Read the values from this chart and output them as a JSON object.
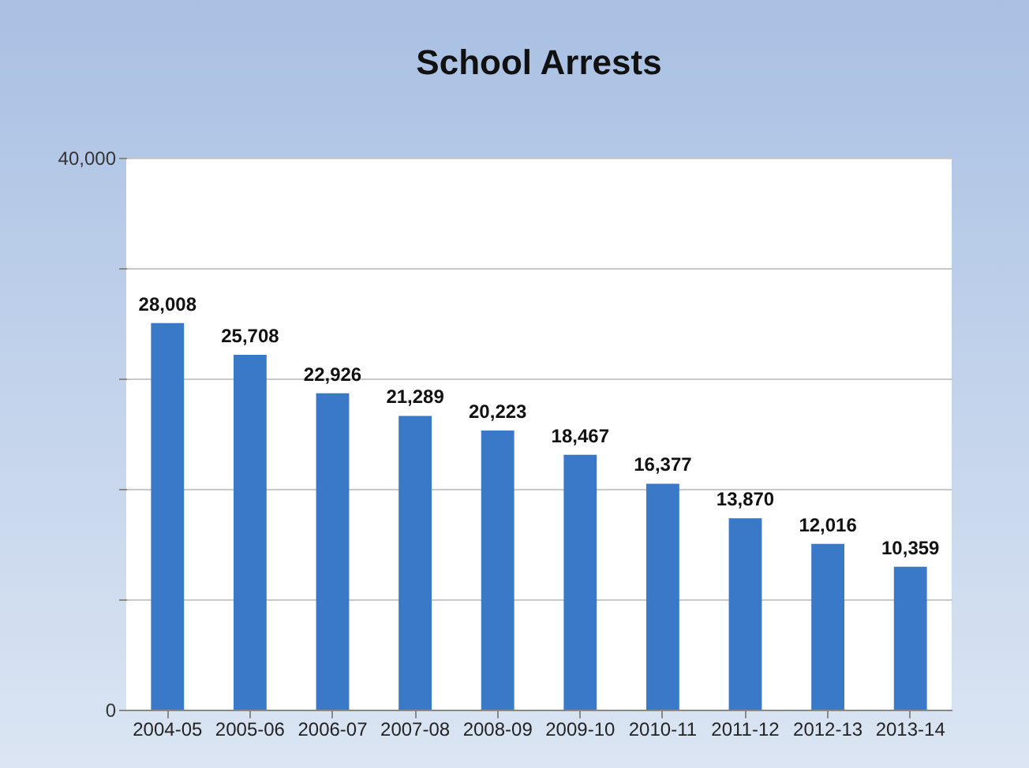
{
  "chart_data": {
    "type": "bar",
    "title": "School Arrests",
    "categories": [
      "2004-05",
      "2005-06",
      "2006-07",
      "2007-08",
      "2008-09",
      "2009-10",
      "2010-11",
      "2011-12",
      "2012-13",
      "2013-14"
    ],
    "values": [
      28008,
      25708,
      22926,
      21289,
      20223,
      18467,
      16377,
      13870,
      12016,
      10359
    ],
    "color": "#3a78c8",
    "ylim": [
      0,
      40000
    ],
    "yticks": [
      0,
      {
        "value": 8000,
        "label": null
      },
      {
        "value": 16000,
        "label": null
      },
      {
        "value": 24000,
        "label": null
      },
      {
        "value": 32000,
        "label": null
      },
      {
        "value": 40000,
        "label": "40,000"
      }
    ],
    "value_labels": [
      "28,008",
      "25,708",
      "22,926",
      "21,289",
      "20,223",
      "18,467",
      "16,377",
      "13,870",
      "12,016",
      "10,359"
    ],
    "grid": "y"
  }
}
